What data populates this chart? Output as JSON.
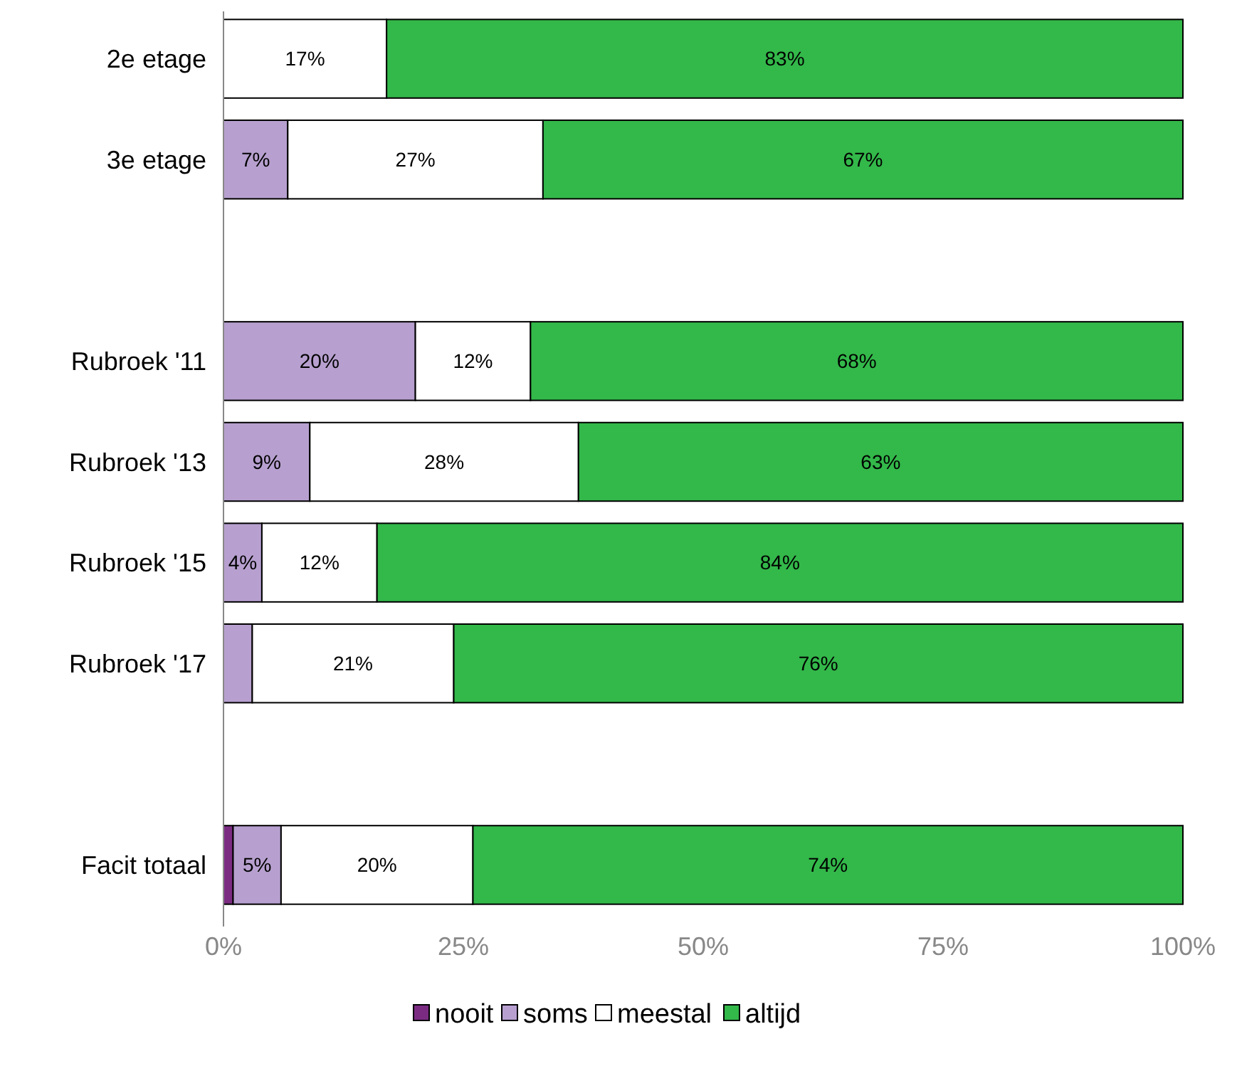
{
  "chart_data": {
    "type": "bar",
    "orientation": "horizontal",
    "stacked": true,
    "categories": [
      "2e etage",
      "3e etage",
      null,
      "Rubroek '11",
      "Rubroek '13",
      "Rubroek '15",
      "Rubroek '17",
      null,
      "Facit totaal"
    ],
    "series": [
      {
        "name": "nooit",
        "color": "#7b2c82",
        "values": [
          0,
          0,
          null,
          0,
          0,
          0,
          0,
          null,
          1
        ],
        "value_labels": [
          null,
          null,
          null,
          null,
          null,
          null,
          null,
          null,
          null
        ]
      },
      {
        "name": "soms",
        "color": "#b7a0cf",
        "values": [
          0,
          6.7,
          null,
          20,
          9,
          4,
          3,
          null,
          5
        ],
        "value_labels": [
          null,
          "7%",
          null,
          "20%",
          "9%",
          "4%",
          null,
          null,
          "5%"
        ]
      },
      {
        "name": "meestal",
        "color": "#ffffff",
        "values": [
          17,
          26.6,
          null,
          12,
          28,
          12,
          21,
          null,
          20
        ],
        "value_labels": [
          "17%",
          "27%",
          null,
          "12%",
          "28%",
          "12%",
          "21%",
          null,
          "20%"
        ]
      },
      {
        "name": "altijd",
        "color": "#33b84a",
        "values": [
          83,
          66.7,
          null,
          68,
          63,
          84,
          76,
          null,
          74
        ],
        "value_labels": [
          "83%",
          "67%",
          null,
          "68%",
          "63%",
          "84%",
          "76%",
          null,
          "74%"
        ]
      }
    ],
    "xlim": [
      0,
      100
    ],
    "xticks": [
      {
        "value": 0,
        "label": "0%"
      },
      {
        "value": 25,
        "label": "25%"
      },
      {
        "value": 50,
        "label": "50%"
      },
      {
        "value": 75,
        "label": "75%"
      },
      {
        "value": 100,
        "label": "100%"
      }
    ],
    "grid": false,
    "legend": "bottom"
  }
}
